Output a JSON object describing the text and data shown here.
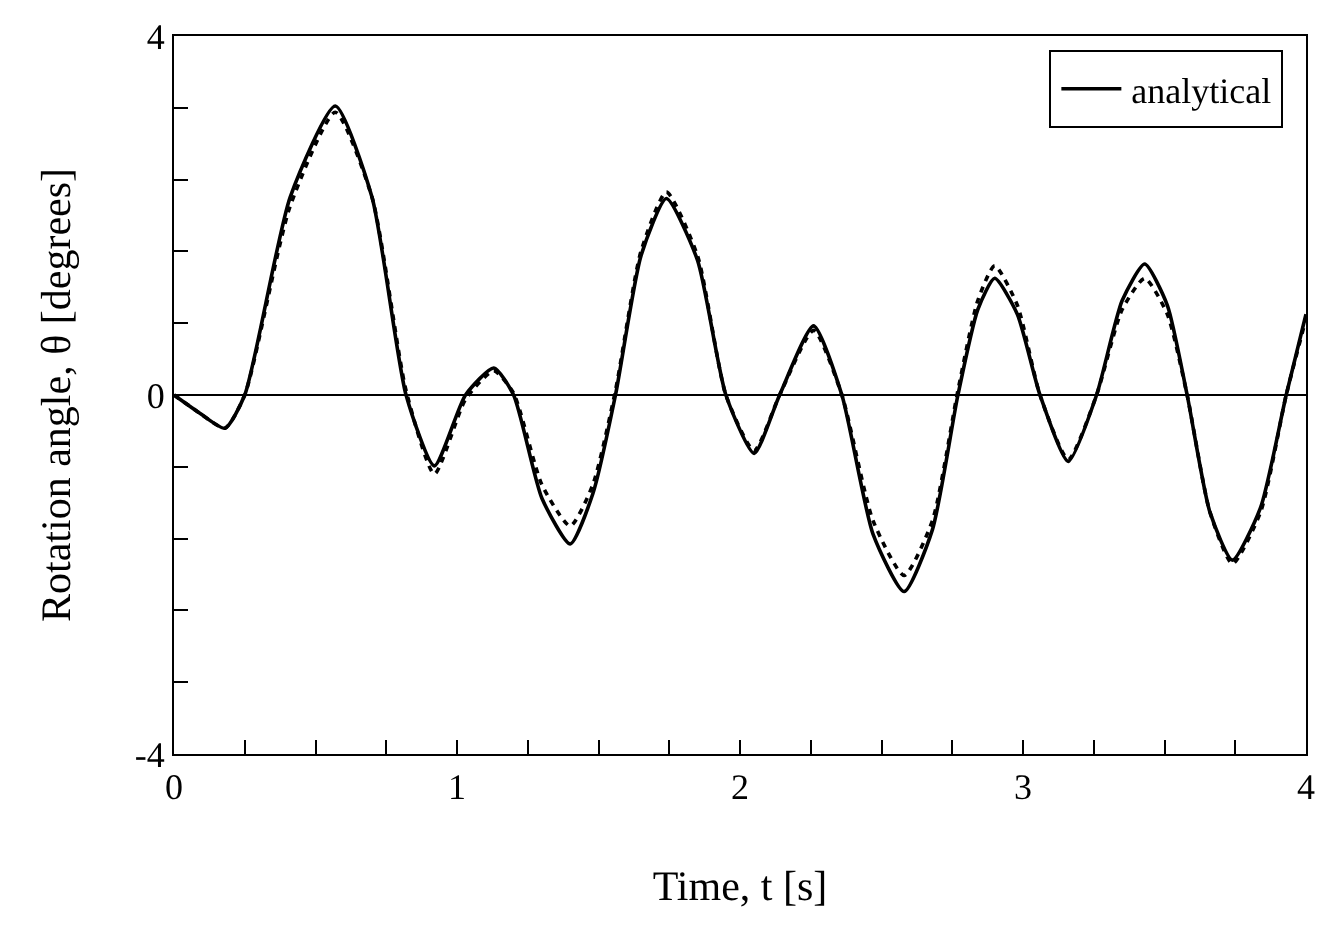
{
  "chart_data": {
    "type": "line",
    "xlabel": "Time, t [s]",
    "ylabel": "Rotation angle, θ [degrees]",
    "x": [
      0,
      0.09,
      0.18,
      0.25,
      0.41,
      0.57,
      0.7,
      0.82,
      0.92,
      1.03,
      1.13,
      1.2,
      1.3,
      1.4,
      1.48,
      1.56,
      1.65,
      1.74,
      1.85,
      1.95,
      2.05,
      2.14,
      2.26,
      2.36,
      2.47,
      2.58,
      2.68,
      2.77,
      2.84,
      2.9,
      2.98,
      3.06,
      3.16,
      3.26,
      3.35,
      3.43,
      3.51,
      3.58,
      3.66,
      3.74,
      3.84,
      3.93,
      4
    ],
    "series": [
      {
        "name": "analytical",
        "color": "#000000",
        "line_style": "solid",
        "values": [
          0,
          -0.2,
          -0.37,
          0,
          2.2,
          3.22,
          2.2,
          0,
          -0.79,
          0,
          0.3,
          0,
          -1.15,
          -1.66,
          -1.1,
          0,
          1.55,
          2.19,
          1.5,
          0,
          -0.65,
          0,
          0.77,
          0,
          -1.55,
          -2.19,
          -1.5,
          0,
          0.95,
          1.3,
          0.9,
          0,
          -0.74,
          0,
          1.05,
          1.46,
          1,
          0,
          -1.3,
          -1.84,
          -1.25,
          0,
          0.9
        ]
      },
      {
        "color": "#000000",
        "line_style": "dotted",
        "values": [
          0,
          -0.2,
          -0.37,
          0,
          2.1,
          3.15,
          2.2,
          0.05,
          -0.88,
          -0.05,
          0.27,
          0.02,
          -1,
          -1.46,
          -1,
          0.05,
          1.6,
          2.26,
          1.55,
          0,
          -0.62,
          0,
          0.72,
          0,
          -1.4,
          -2.01,
          -1.4,
          0.05,
          1.05,
          1.44,
          1,
          0,
          -0.72,
          0,
          0.95,
          1.3,
          0.9,
          0,
          -1.3,
          -1.88,
          -1.3,
          0,
          0.85
        ]
      }
    ],
    "xlim": [
      0,
      4
    ],
    "ylim": [
      -4,
      4
    ],
    "xticks": [
      0,
      {
        "value": 0.25,
        "label": null
      },
      {
        "value": 0.5,
        "label": null
      },
      {
        "value": 0.75,
        "label": null
      },
      1,
      {
        "value": 1.25,
        "label": null
      },
      {
        "value": 1.5,
        "label": null
      },
      {
        "value": 1.75,
        "label": null
      },
      2,
      {
        "value": 2.25,
        "label": null
      },
      {
        "value": 2.5,
        "label": null
      },
      {
        "value": 2.75,
        "label": null
      },
      3,
      {
        "value": 3.25,
        "label": null
      },
      {
        "value": 3.5,
        "label": null
      },
      {
        "value": 3.75,
        "label": null
      },
      4
    ],
    "yticks": [
      -4,
      {
        "value": -3.2,
        "label": null
      },
      {
        "value": -2.4,
        "label": null
      },
      {
        "value": -1.6,
        "label": null
      },
      {
        "value": -0.8,
        "label": null
      },
      0,
      {
        "value": 0.8,
        "label": null
      },
      {
        "value": 1.6,
        "label": null
      },
      {
        "value": 2.4,
        "label": null
      },
      {
        "value": 3.2,
        "label": null
      },
      4
    ],
    "ref_lines": [
      {
        "axis": "y",
        "value": 0,
        "color": "#000000"
      }
    ],
    "grid": false,
    "legend": "top right"
  }
}
